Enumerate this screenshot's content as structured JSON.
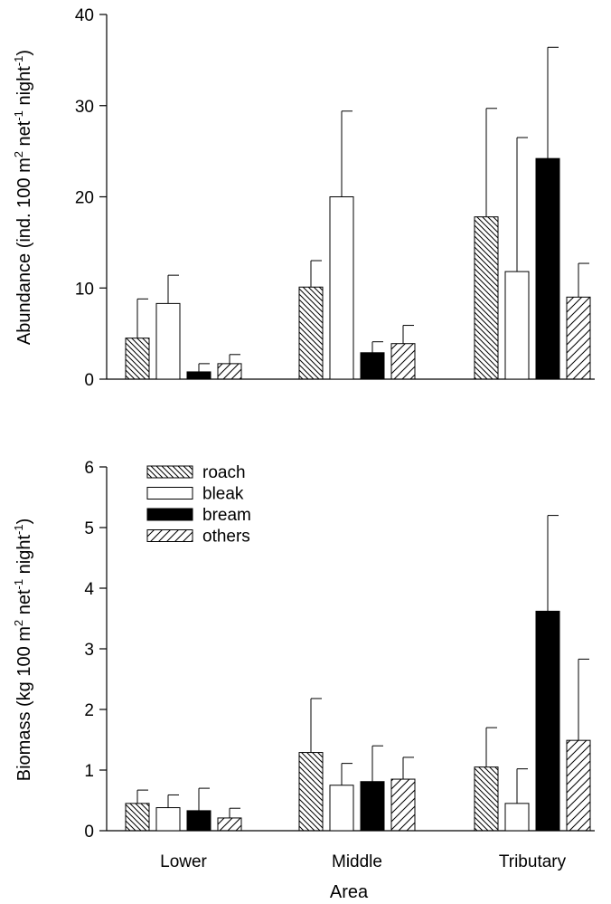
{
  "chart_data": [
    {
      "type": "bar",
      "categories": [
        "Lower",
        "Middle",
        "Tributary"
      ],
      "ylabel": "Abundance (ind. 100 m",
      "ylabel_sup1": "2",
      "ylabel_mid": " net",
      "ylabel_sup2": "-1",
      "ylabel_end": " night",
      "ylabel_sup3": "-1",
      "ylabel_close": ")",
      "ylim": [
        0,
        40
      ],
      "yticks": [
        "0",
        "10",
        "20",
        "30",
        "40"
      ],
      "series": [
        {
          "name": "roach",
          "values": [
            4.5,
            10.1,
            17.8
          ],
          "errors": [
            4.3,
            2.9,
            11.9
          ]
        },
        {
          "name": "bleak",
          "values": [
            8.3,
            20.0,
            11.8
          ],
          "errors": [
            3.1,
            9.4,
            14.7
          ]
        },
        {
          "name": "bream",
          "values": [
            0.8,
            2.9,
            24.2
          ],
          "errors": [
            0.9,
            1.2,
            12.2
          ]
        },
        {
          "name": "others",
          "values": [
            1.7,
            3.9,
            9.0
          ],
          "errors": [
            1.0,
            2.0,
            3.7
          ]
        }
      ]
    },
    {
      "type": "bar",
      "categories": [
        "Lower",
        "Middle",
        "Tributary"
      ],
      "xlabel": "Area",
      "ylabel": "Biomass (kg 100 m",
      "ylabel_sup1": "2",
      "ylabel_mid": " net",
      "ylabel_sup2": "-1",
      "ylabel_end": " night",
      "ylabel_sup3": "-1",
      "ylabel_close": ")",
      "ylim": [
        0,
        6
      ],
      "yticks": [
        "0",
        "1",
        "2",
        "3",
        "4",
        "5",
        "6"
      ],
      "legend_position": "top-left",
      "series": [
        {
          "name": "roach",
          "values": [
            0.45,
            1.29,
            1.05
          ],
          "errors": [
            0.22,
            0.89,
            0.65
          ]
        },
        {
          "name": "bleak",
          "values": [
            0.38,
            0.75,
            0.45
          ],
          "errors": [
            0.21,
            0.36,
            0.57
          ]
        },
        {
          "name": "bream",
          "values": [
            0.33,
            0.81,
            3.62
          ],
          "errors": [
            0.37,
            0.59,
            1.58
          ]
        },
        {
          "name": "others",
          "values": [
            0.21,
            0.85,
            1.49
          ],
          "errors": [
            0.16,
            0.36,
            1.34
          ]
        }
      ]
    }
  ],
  "colors": {
    "axis": "#000000",
    "bleak_fill": "#ffffff",
    "bream_fill": "#000000"
  }
}
